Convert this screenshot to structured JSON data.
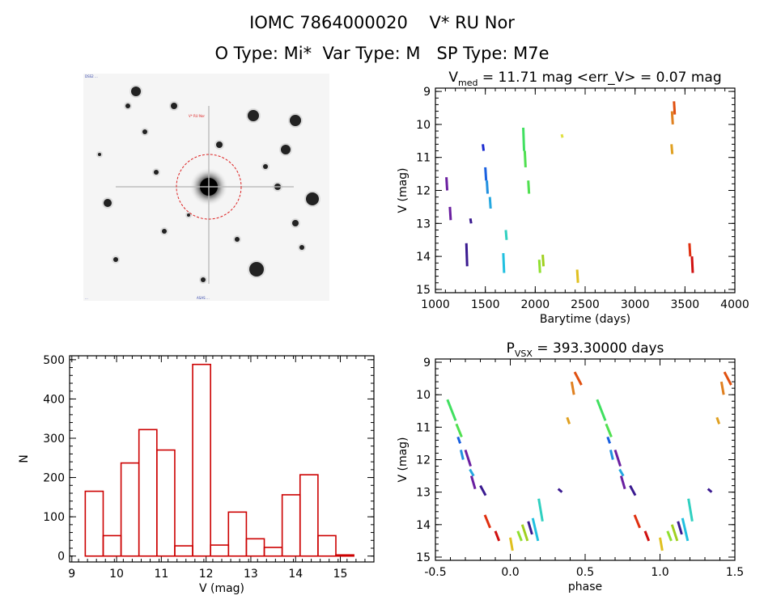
{
  "header": {
    "line1": "IOMC 7864000020    V* RU Nor",
    "line2": "O Type: Mi*  Var Type: M   SP Type: M7e"
  },
  "image_panel": {
    "tiny_labels": [
      "DSS2 ...",
      "V* RU Nor",
      "ASAS ...",
      "..."
    ]
  },
  "chart_data": [
    {
      "type": "scatter",
      "title": "V_med = 11.71 mag <err_V> = 0.07 mag",
      "title_parts": {
        "v": "V",
        "sub": "med",
        "rest": " = 11.71 mag <err_V> = 0.07 mag"
      },
      "xlabel": "Barytime (days)",
      "ylabel": "V (mag)",
      "xlim": [
        1000,
        4000
      ],
      "ylim": [
        15.1,
        8.9
      ],
      "y_inverted": true,
      "xticks": [
        1000,
        1500,
        2000,
        2500,
        3000,
        3500,
        4000
      ],
      "yticks": [
        9,
        10,
        11,
        12,
        13,
        14,
        15
      ],
      "segments": [
        {
          "x": 1110,
          "y0": 11.6,
          "y1": 12.0,
          "color": "#6a1fa0"
        },
        {
          "x": 1145,
          "y0": 12.5,
          "y1": 12.9,
          "color": "#6a1fa0"
        },
        {
          "x": 1310,
          "y0": 13.6,
          "y1": 14.3,
          "color": "#3a1a90"
        },
        {
          "x": 1350,
          "y0": 12.85,
          "y1": 13.0,
          "color": "#3a1a90"
        },
        {
          "x": 1475,
          "y0": 10.6,
          "y1": 10.8,
          "color": "#1a2ad0"
        },
        {
          "x": 1500,
          "y0": 11.3,
          "y1": 11.7,
          "color": "#1a60e0"
        },
        {
          "x": 1515,
          "y0": 11.7,
          "y1": 12.1,
          "color": "#2090e0"
        },
        {
          "x": 1545,
          "y0": 12.2,
          "y1": 12.55,
          "color": "#25a8e0"
        },
        {
          "x": 1680,
          "y0": 13.9,
          "y1": 14.5,
          "color": "#20c0e0"
        },
        {
          "x": 1705,
          "y0": 13.2,
          "y1": 13.5,
          "color": "#30d0c0"
        },
        {
          "x": 1880,
          "y0": 10.1,
          "y1": 10.8,
          "color": "#40e060"
        },
        {
          "x": 1895,
          "y0": 10.8,
          "y1": 11.3,
          "color": "#50e050"
        },
        {
          "x": 1930,
          "y0": 11.7,
          "y1": 12.1,
          "color": "#50e050"
        },
        {
          "x": 2040,
          "y0": 14.1,
          "y1": 14.5,
          "color": "#90e030"
        },
        {
          "x": 2075,
          "y0": 13.95,
          "y1": 14.3,
          "color": "#a0d020"
        },
        {
          "x": 2265,
          "y0": 10.3,
          "y1": 10.4,
          "color": "#e0e040"
        },
        {
          "x": 2420,
          "y0": 14.4,
          "y1": 14.8,
          "color": "#e0c020"
        },
        {
          "x": 3365,
          "y0": 10.6,
          "y1": 10.9,
          "color": "#e0a020"
        },
        {
          "x": 3370,
          "y0": 9.6,
          "y1": 10.0,
          "color": "#e08020"
        },
        {
          "x": 3390,
          "y0": 9.3,
          "y1": 9.7,
          "color": "#e05010"
        },
        {
          "x": 3545,
          "y0": 13.6,
          "y1": 14.0,
          "color": "#e03010"
        },
        {
          "x": 3570,
          "y0": 14.0,
          "y1": 14.5,
          "color": "#d01010"
        }
      ]
    },
    {
      "type": "bar",
      "title": "",
      "xlabel": "V (mag)",
      "ylabel": "N",
      "xlim": [
        8.95,
        15.75
      ],
      "ylim": [
        -15,
        510
      ],
      "xticks": [
        9,
        10,
        11,
        12,
        13,
        14,
        15
      ],
      "yticks": [
        0,
        100,
        200,
        300,
        400,
        500
      ],
      "bin_edges": [
        9.3,
        9.7,
        10.1,
        10.5,
        10.9,
        11.3,
        11.7,
        12.1,
        12.5,
        12.9,
        13.3,
        13.7,
        14.1,
        14.5,
        14.9,
        15.3
      ],
      "values": [
        165,
        52,
        237,
        322,
        270,
        26,
        488,
        28,
        112,
        44,
        22,
        156,
        207,
        52,
        3
      ],
      "color": "#cc0000"
    },
    {
      "type": "scatter",
      "title": "P_VSX = 393.30000 days",
      "title_parts": {
        "v": "P",
        "sub": "VSX",
        "rest": " = 393.30000 days"
      },
      "xlabel": "phase",
      "ylabel": "V (mag)",
      "xlim": [
        -0.5,
        1.5
      ],
      "ylim": [
        15.1,
        8.9
      ],
      "y_inverted": true,
      "xticks": [
        -0.5,
        0.0,
        0.5,
        1.0,
        1.5
      ],
      "xtick_labels": [
        "-0.5",
        "0.0",
        "0.5",
        "1.0",
        "1.5"
      ],
      "yticks": [
        9,
        10,
        11,
        12,
        13,
        14,
        15
      ],
      "segments": [
        {
          "x0": -0.42,
          "x1": -0.37,
          "y0": 10.15,
          "y1": 10.8,
          "color": "#40e060"
        },
        {
          "x0": -0.36,
          "x1": -0.33,
          "y0": 10.9,
          "y1": 11.3,
          "color": "#50e050"
        },
        {
          "x0": -0.35,
          "x1": -0.34,
          "y0": 11.3,
          "y1": 11.5,
          "color": "#1a60e0"
        },
        {
          "x0": -0.33,
          "x1": -0.32,
          "y0": 11.7,
          "y1": 12.0,
          "color": "#2090e0"
        },
        {
          "x0": -0.3,
          "x1": -0.27,
          "y0": 11.7,
          "y1": 12.2,
          "color": "#6a1fa0"
        },
        {
          "x0": -0.27,
          "x1": -0.25,
          "y0": 12.3,
          "y1": 12.5,
          "color": "#25a8e0"
        },
        {
          "x0": -0.26,
          "x1": -0.24,
          "y0": 12.5,
          "y1": 12.9,
          "color": "#6a1fa0"
        },
        {
          "x0": -0.2,
          "x1": -0.17,
          "y0": 12.8,
          "y1": 13.1,
          "color": "#3a1a90"
        },
        {
          "x0": -0.17,
          "x1": -0.14,
          "y0": 13.7,
          "y1": 14.1,
          "color": "#e03010"
        },
        {
          "x0": -0.1,
          "x1": -0.08,
          "y0": 14.2,
          "y1": 14.5,
          "color": "#d01010"
        },
        {
          "x0": 0.0,
          "x1": 0.01,
          "y0": 14.4,
          "y1": 14.8,
          "color": "#e0c020"
        },
        {
          "x0": 0.05,
          "x1": 0.07,
          "y0": 14.2,
          "y1": 14.5,
          "color": "#90e030"
        },
        {
          "x0": 0.08,
          "x1": 0.11,
          "y0": 14.0,
          "y1": 14.5,
          "color": "#a0d020"
        },
        {
          "x0": 0.12,
          "x1": 0.14,
          "y0": 13.9,
          "y1": 14.3,
          "color": "#3a1a90"
        },
        {
          "x0": 0.15,
          "x1": 0.18,
          "y0": 13.8,
          "y1": 14.5,
          "color": "#20c0e0"
        },
        {
          "x0": 0.19,
          "x1": 0.21,
          "y0": 13.2,
          "y1": 13.9,
          "color": "#30d0c0"
        },
        {
          "x0": 0.32,
          "x1": 0.34,
          "y0": 12.9,
          "y1": 13.0,
          "color": "#3a1a90"
        },
        {
          "x0": 0.38,
          "x1": 0.39,
          "y0": 10.7,
          "y1": 10.9,
          "color": "#e0a020"
        },
        {
          "x0": 0.41,
          "x1": 0.42,
          "y0": 9.6,
          "y1": 10.0,
          "color": "#e08020"
        },
        {
          "x0": 0.43,
          "x1": 0.47,
          "y0": 9.3,
          "y1": 9.7,
          "color": "#e05010"
        }
      ],
      "period_repeat": 1.0
    }
  ]
}
